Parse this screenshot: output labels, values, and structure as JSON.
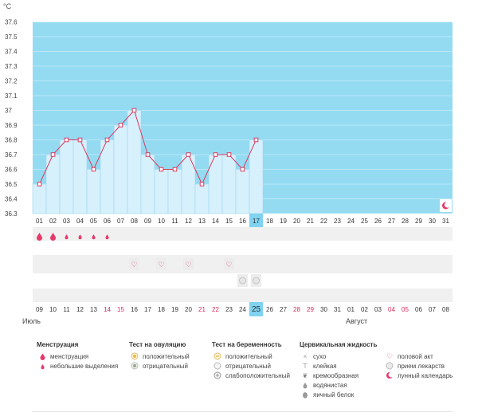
{
  "chart_data": {
    "type": "bar",
    "unit": "°C",
    "ylim": [
      36.3,
      37.7
    ],
    "yticks": [
      "36.3",
      "36.4",
      "36.5",
      "36.6",
      "36.7",
      "36.8",
      "36.9",
      "37",
      "37.1",
      "37.2",
      "37.3",
      "37.4",
      "37.5",
      "37.6"
    ],
    "cycle_days": [
      "01",
      "02",
      "03",
      "04",
      "05",
      "06",
      "07",
      "08",
      "09",
      "10",
      "11",
      "12",
      "13",
      "14",
      "15",
      "16",
      "17",
      "18",
      "19",
      "20",
      "21",
      "22",
      "23",
      "24",
      "25",
      "26",
      "27",
      "28",
      "29",
      "30",
      "31"
    ],
    "temperature": [
      36.5,
      36.7,
      36.8,
      36.8,
      36.6,
      36.8,
      36.9,
      37.0,
      36.7,
      36.6,
      36.6,
      36.7,
      36.5,
      36.7,
      36.7,
      36.6,
      36.8
    ],
    "current_day_index": 16,
    "calendar_dates": [
      "09",
      "10",
      "11",
      "12",
      "13",
      "14",
      "15",
      "16",
      "17",
      "18",
      "19",
      "20",
      "21",
      "22",
      "23",
      "24",
      "25",
      "26",
      "27",
      "28",
      "29",
      "30",
      "31",
      "01",
      "02",
      "03",
      "04",
      "05",
      "06",
      "07",
      "08"
    ],
    "red_date_indices": [
      5,
      6,
      12,
      13,
      19,
      20,
      26,
      27
    ],
    "menstruation_days": [
      0,
      1,
      2,
      3,
      4,
      5
    ],
    "menstruation_heavy_days": [
      0,
      1
    ],
    "intercourse_days": [
      7,
      9,
      11,
      14
    ],
    "medicine_days": [
      15,
      16
    ],
    "moon_day": 30,
    "colors": {
      "fertile_bg": "#94dbf2",
      "bar": "#d6f0fc",
      "line": "#d93b61",
      "highlight": "#7fd3f0",
      "red_text": "#d6285a",
      "stripe": "#f0f0f0"
    }
  },
  "months": {
    "first": "Июль",
    "second": "Август"
  },
  "legend": {
    "menstruation": {
      "title": "Менструация",
      "items": [
        "менструация",
        "небольшие выделения"
      ]
    },
    "ovulation": {
      "title": "Тест на овуляцию",
      "items": [
        "положительный",
        "отрицательный"
      ]
    },
    "pregnancy": {
      "title": "Тест на беременность",
      "items": [
        "положительный",
        "отрицательный",
        "слабоположительный"
      ]
    },
    "cervical": {
      "title": "Цервикальная жидкость",
      "items": [
        "сухо",
        "клейкая",
        "кремообразная",
        "водянистая",
        "яичный белок"
      ]
    },
    "other": {
      "items": [
        "половой акт",
        "прием лекарств",
        "лунный календарь"
      ]
    }
  }
}
